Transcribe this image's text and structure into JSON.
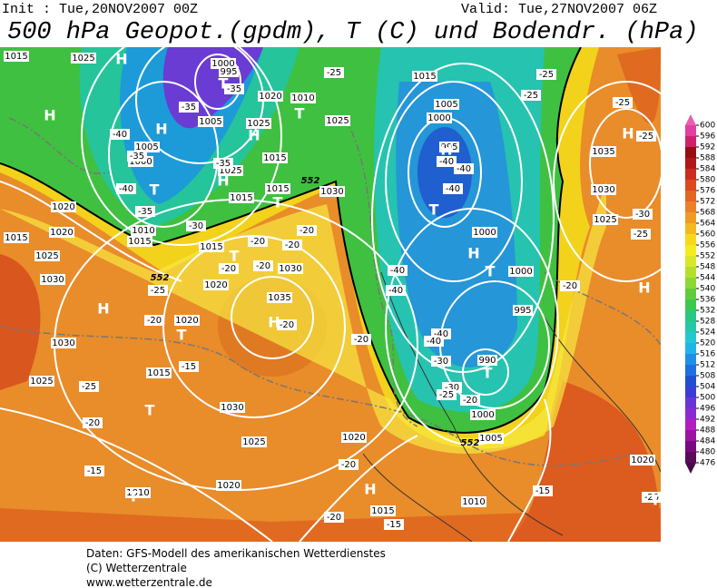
{
  "header": {
    "init": "Init : Tue,20NOV2007 00Z",
    "valid": "Valid: Tue,27NOV2007 06Z",
    "title": "500 hPa Geopot.(gpdm), T (C) und Bodendr. (hPa)"
  },
  "colorbar": {
    "ticks": [
      600,
      596,
      592,
      588,
      584,
      580,
      576,
      572,
      568,
      564,
      560,
      556,
      552,
      548,
      544,
      540,
      536,
      532,
      528,
      524,
      520,
      516,
      512,
      508,
      504,
      500,
      496,
      492,
      488,
      484,
      480,
      476
    ]
  },
  "map": {
    "isobar_labels": [
      "1015",
      "1025",
      "1000",
      "995",
      "1020",
      "1010",
      "1025",
      "1015",
      "1005",
      "1000",
      "995",
      "1025",
      "1005",
      "1005",
      "1000",
      "1025",
      "1015",
      "1015",
      "1015",
      "1030",
      "1020",
      "1020",
      "1015",
      "1010",
      "1015",
      "1025",
      "1015",
      "1020",
      "1030",
      "1035",
      "1030",
      "1020",
      "1030",
      "1015",
      "1025",
      "1030",
      "1025",
      "1020",
      "1020",
      "1010",
      "1015",
      "1010",
      "1005",
      "1000",
      "990",
      "995",
      "1000",
      "1000",
      "1030",
      "1035",
      "1025",
      "1020"
    ],
    "temperature_labels": [
      "-35",
      "-40",
      "-35",
      "-40",
      "-35",
      "-30",
      "-35",
      "-25",
      "-25",
      "-25",
      "-25",
      "-25",
      "-40",
      "-40",
      "-40",
      "-40",
      "-40",
      "-40",
      "-40",
      "-30",
      "-30",
      "-25",
      "-20",
      "-20",
      "-20",
      "-20",
      "-20",
      "-20",
      "-20",
      "-20",
      "-20",
      "-25",
      "-15",
      "-25",
      "-20",
      "-15",
      "-20",
      "-20",
      "-15",
      "-15",
      "-20",
      "-30",
      "-25",
      "-20",
      "-35"
    ],
    "pressure_centers": [
      "H",
      "T",
      "H",
      "H",
      "T",
      "H",
      "H",
      "T",
      "T",
      "T",
      "H",
      "T",
      "H",
      "H",
      "T",
      "H",
      "T",
      "T",
      "H",
      "H",
      "T",
      "H",
      "T",
      "T"
    ],
    "contour_552_labels": [
      "552",
      "552",
      "552"
    ]
  },
  "footer": {
    "line1": "Daten: GFS-Modell des amerikanischen Wetterdienstes",
    "line2": "(C) Wetterzentrale",
    "line3": "www.wetterzentrale.de"
  }
}
